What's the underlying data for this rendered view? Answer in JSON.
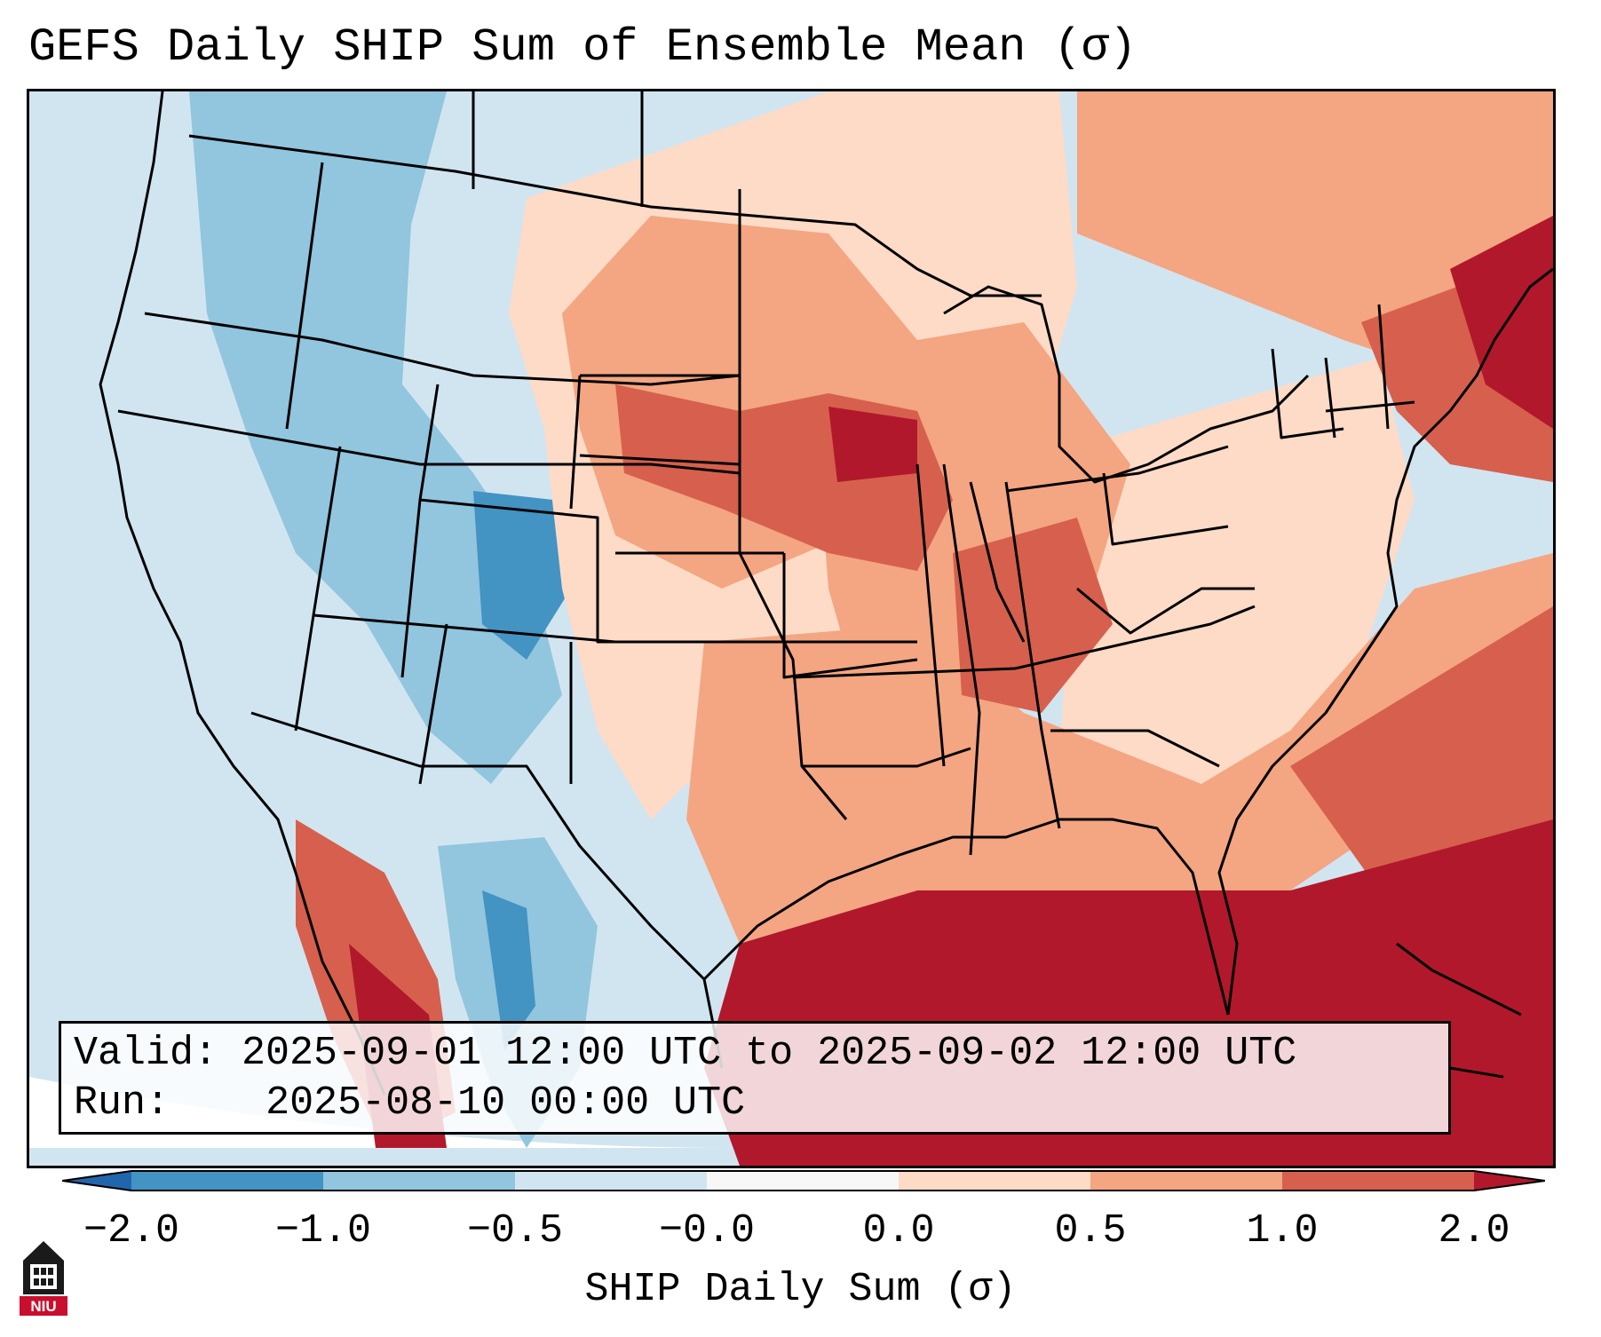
{
  "title": "GEFS Daily SHIP Sum of Ensemble Mean (σ)",
  "info": {
    "valid_label": "Valid:",
    "valid_value": "2025-09-01 12:00 UTC to 2025-09-02 12:00 UTC",
    "run_label": "Run:",
    "run_value": "2025-08-10 00:00 UTC"
  },
  "colorbar": {
    "label": "SHIP Daily Sum (σ)",
    "ticks": [
      "−2.0",
      "−1.0",
      "−0.5",
      "−0.0",
      "0.0",
      "0.5",
      "1.0",
      "2.0"
    ],
    "colors": [
      "#2166ac",
      "#4393c3",
      "#92c5de",
      "#d1e5f0",
      "#f7f7f7",
      "#fddbc7",
      "#f4a582",
      "#d6604d",
      "#b2182b"
    ],
    "bins": [
      "<-2.0",
      "-2.0 to -1.0",
      "-1.0 to -0.5",
      "-0.5 to -0.0",
      "-0.0 to 0.0",
      "0.0 to 0.5",
      "0.5 to 1.0",
      "1.0 to 2.0",
      ">2.0"
    ]
  },
  "logo": {
    "icon": "niu-logo-icon",
    "text": "NIU"
  }
}
